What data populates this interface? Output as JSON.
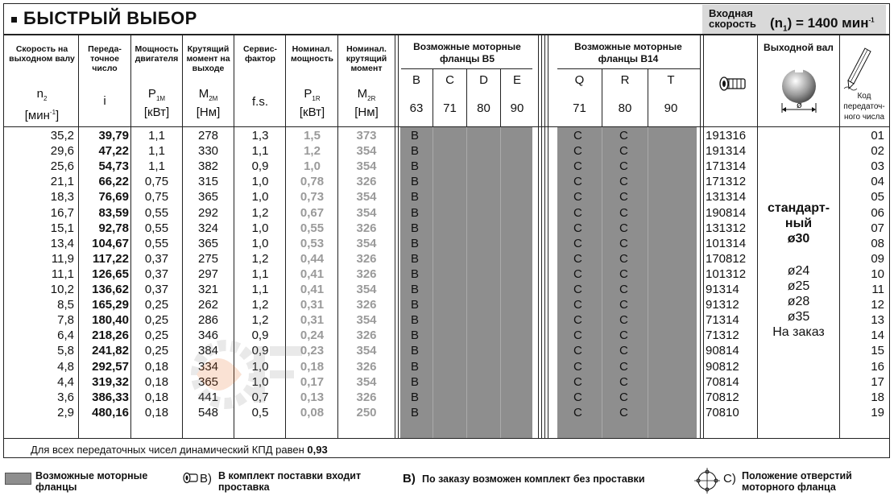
{
  "title": "БЫСТРЫЙ ВЫБОР",
  "input_speed": {
    "label_line1": "Входная",
    "label_line2": "скорость",
    "value": "(n",
    "sub": "1",
    "value2": ") = 1400 мин",
    "sup": "-1"
  },
  "headers": {
    "output_speed": "Скорость на выходном валу",
    "ratio": "Переда-точное число",
    "motor_power": "Мощность двигателя",
    "torque": "Крутящий момент на выходе",
    "service_factor": "Сервис-фактор",
    "nominal_power": "Номинал. мощность",
    "nominal_torque": "Номинал. крутящий момент",
    "flanges_b5": "Возможные моторные фланцы B5",
    "flanges_b14": "Возможные моторные фланцы B14",
    "output_shaft": "Выходной вал",
    "ratio_code": "Код передаточ-ного числа"
  },
  "symbols": {
    "n2": "n",
    "n2_sub": "2",
    "n2_unit": "[мин",
    "n2_unit_sup": "-1",
    "n2_unit_end": "]",
    "i": "i",
    "p1m": "P",
    "p1m_sub": "1M",
    "p1m_unit": "[кВт]",
    "m2m": "M",
    "m2m_sub": "2M",
    "m2m_unit": "[Нм]",
    "fs": "f.s.",
    "p1r": "P",
    "p1r_sub": "1R",
    "p1r_unit": "[кВт]",
    "m2r": "M",
    "m2r_sub": "2R",
    "m2r_unit": "[Нм]"
  },
  "b5_letters": [
    "B",
    "C",
    "D",
    "E"
  ],
  "b5_sizes": [
    "63",
    "71",
    "80",
    "90"
  ],
  "b14_letters": [
    "Q",
    "R",
    "T"
  ],
  "b14_sizes": [
    "71",
    "80",
    "90"
  ],
  "rows": [
    {
      "n2": "35,2",
      "i": "39,79",
      "p1m": "1,1",
      "m2m": "278",
      "fs": "1,3",
      "p1r": "1,5",
      "m2r": "373",
      "b5": "B",
      "q": "C",
      "r": "C",
      "art": "191316",
      "code": "01"
    },
    {
      "n2": "29,6",
      "i": "47,22",
      "p1m": "1,1",
      "m2m": "330",
      "fs": "1,1",
      "p1r": "1,2",
      "m2r": "354",
      "b5": "B",
      "q": "C",
      "r": "C",
      "art": "191314",
      "code": "02"
    },
    {
      "n2": "25,6",
      "i": "54,73",
      "p1m": "1,1",
      "m2m": "382",
      "fs": "0,9",
      "p1r": "1,0",
      "m2r": "354",
      "b5": "B",
      "q": "C",
      "r": "C",
      "art": "171314",
      "code": "03"
    },
    {
      "n2": "21,1",
      "i": "66,22",
      "p1m": "0,75",
      "m2m": "315",
      "fs": "1,0",
      "p1r": "0,78",
      "m2r": "326",
      "b5": "B",
      "q": "C",
      "r": "C",
      "art": "171312",
      "code": "04"
    },
    {
      "n2": "18,3",
      "i": "76,69",
      "p1m": "0,75",
      "m2m": "365",
      "fs": "1,0",
      "p1r": "0,73",
      "m2r": "354",
      "b5": "B",
      "q": "C",
      "r": "C",
      "art": "131314",
      "code": "05"
    },
    {
      "n2": "16,7",
      "i": "83,59",
      "p1m": "0,55",
      "m2m": "292",
      "fs": "1,2",
      "p1r": "0,67",
      "m2r": "354",
      "b5": "B",
      "q": "C",
      "r": "C",
      "art": "190814",
      "code": "06"
    },
    {
      "n2": "15,1",
      "i": "92,78",
      "p1m": "0,55",
      "m2m": "324",
      "fs": "1,0",
      "p1r": "0,55",
      "m2r": "326",
      "b5": "B",
      "q": "C",
      "r": "C",
      "art": "131312",
      "code": "07"
    },
    {
      "n2": "13,4",
      "i": "104,67",
      "p1m": "0,55",
      "m2m": "365",
      "fs": "1,0",
      "p1r": "0,53",
      "m2r": "354",
      "b5": "B",
      "q": "C",
      "r": "C",
      "art": "101314",
      "code": "08"
    },
    {
      "n2": "11,9",
      "i": "117,22",
      "p1m": "0,37",
      "m2m": "275",
      "fs": "1,2",
      "p1r": "0,44",
      "m2r": "326",
      "b5": "B",
      "q": "C",
      "r": "C",
      "art": "170812",
      "code": "09"
    },
    {
      "n2": "11,1",
      "i": "126,65",
      "p1m": "0,37",
      "m2m": "297",
      "fs": "1,1",
      "p1r": "0,41",
      "m2r": "326",
      "b5": "B",
      "q": "C",
      "r": "C",
      "art": "101312",
      "code": "10"
    },
    {
      "n2": "10,2",
      "i": "136,62",
      "p1m": "0,37",
      "m2m": "321",
      "fs": "1,1",
      "p1r": "0,41",
      "m2r": "354",
      "b5": "B",
      "q": "C",
      "r": "C",
      "art": "91314",
      "code": "11"
    },
    {
      "n2": "8,5",
      "i": "165,29",
      "p1m": "0,25",
      "m2m": "262",
      "fs": "1,2",
      "p1r": "0,31",
      "m2r": "326",
      "b5": "B",
      "q": "C",
      "r": "C",
      "art": "91312",
      "code": "12"
    },
    {
      "n2": "7,8",
      "i": "180,40",
      "p1m": "0,25",
      "m2m": "286",
      "fs": "1,2",
      "p1r": "0,31",
      "m2r": "354",
      "b5": "B",
      "q": "C",
      "r": "C",
      "art": "71314",
      "code": "13"
    },
    {
      "n2": "6,4",
      "i": "218,26",
      "p1m": "0,25",
      "m2m": "346",
      "fs": "0,9",
      "p1r": "0,24",
      "m2r": "326",
      "b5": "B",
      "q": "C",
      "r": "C",
      "art": "71312",
      "code": "14"
    },
    {
      "n2": "5,8",
      "i": "241,82",
      "p1m": "0,25",
      "m2m": "384",
      "fs": "0,9",
      "p1r": "0,23",
      "m2r": "354",
      "b5": "B",
      "q": "C",
      "r": "C",
      "art": "90814",
      "code": "15"
    },
    {
      "n2": "4,8",
      "i": "292,57",
      "p1m": "0,18",
      "m2m": "334",
      "fs": "1,0",
      "p1r": "0,18",
      "m2r": "326",
      "b5": "B",
      "q": "C",
      "r": "C",
      "art": "90812",
      "code": "16"
    },
    {
      "n2": "4,4",
      "i": "319,32",
      "p1m": "0,18",
      "m2m": "365",
      "fs": "1,0",
      "p1r": "0,17",
      "m2r": "354",
      "b5": "B",
      "q": "C",
      "r": "C",
      "art": "70814",
      "code": "17"
    },
    {
      "n2": "3,6",
      "i": "386,33",
      "p1m": "0,18",
      "m2m": "441",
      "fs": "0,7",
      "p1r": "0,13",
      "m2r": "326",
      "b5": "B",
      "q": "C",
      "r": "C",
      "art": "70812",
      "code": "18"
    },
    {
      "n2": "2,9",
      "i": "480,16",
      "p1m": "0,18",
      "m2m": "548",
      "fs": "0,5",
      "p1r": "0,08",
      "m2r": "250",
      "b5": "B",
      "q": "C",
      "r": "C",
      "art": "70810",
      "code": "19"
    }
  ],
  "shaft": {
    "standard_line1": "стандарт-",
    "standard_line2": "ный",
    "standard_dia": "ø30",
    "options": [
      "ø24",
      "ø25",
      "ø28",
      "ø35"
    ],
    "on_order": "На заказ",
    "dia_symbol": "ø"
  },
  "footnote": {
    "text": "Для всех передаточных чисел динамический КПД равен ",
    "value": "0,93"
  },
  "legend": {
    "swatch_line1": "Возможные моторные",
    "swatch_line2": "фланцы",
    "b_prefix": "B)",
    "b_line1": "В комплект поставки входит",
    "b_line2": "проставка",
    "b2_prefix": "B)",
    "b2_text": "По заказу возможен комплект без проставки",
    "c_prefix": "C)",
    "c_line1": "Положение отверстий",
    "c_line2": "моторного фланца"
  },
  "colors": {
    "grey": "#8e8e8e",
    "input_bg": "#d9d9d9",
    "text": "#111111",
    "muted": "#9a9a9a"
  }
}
